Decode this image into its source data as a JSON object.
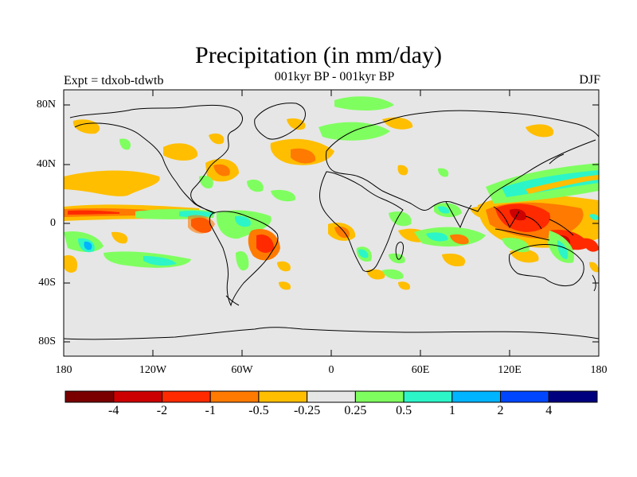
{
  "title": "Precipitation (in mm/day)",
  "subtitle": "001kyr BP - 001kyr BP",
  "experiment": "Expt = tdxob-tdwtb",
  "season": "DJF",
  "lat_labels": [
    "80N",
    "40N",
    "0",
    "40S",
    "80S"
  ],
  "lon_labels": [
    "180",
    "120W",
    "60W",
    "0",
    "60E",
    "120E",
    "180"
  ],
  "colorbar": {
    "labels": [
      "-4",
      "-2",
      "-1",
      "-0.5",
      "-0.25",
      "0.25",
      "0.5",
      "1",
      "2",
      "4"
    ],
    "colors": [
      "#7a0000",
      "#cc0000",
      "#ff2a00",
      "#ff7a00",
      "#ffbe00",
      "#e6e6e6",
      "#7fff5f",
      "#2cf5c8",
      "#00b4ff",
      "#0046ff",
      "#00007f"
    ]
  },
  "colors": {
    "background_land_ocean": "#e6e6e6",
    "coastline": "#000000"
  }
}
